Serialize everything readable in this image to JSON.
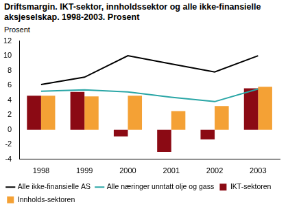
{
  "chart_data": {
    "type": "bar",
    "title": "Driftsmargin. IKT-sektor, innholdssektor og alle ikke-finansielle aksjeselskap. 1998-2003. Prosent",
    "y_label": "Prosent",
    "categories": [
      "1998",
      "1999",
      "2000",
      "2001",
      "2002",
      "2003"
    ],
    "series": [
      {
        "name": "Alle ikke-finansielle AS",
        "type": "line",
        "color": "#000000",
        "values": [
          6.1,
          7.1,
          10.0,
          8.9,
          7.8,
          10.0
        ]
      },
      {
        "name": "Alle næringer unntatt olje og gass",
        "type": "line",
        "color": "#2aa6a6",
        "values": [
          5.2,
          5.4,
          5.1,
          4.4,
          3.8,
          5.5
        ]
      },
      {
        "name": "IKT-sektoren",
        "type": "bar",
        "color": "#8b0a14",
        "values": [
          4.6,
          5.1,
          -0.9,
          -3.0,
          -1.3,
          5.6
        ]
      },
      {
        "name": "Innholds-sektoren",
        "type": "bar",
        "color": "#f4a135",
        "values": [
          4.6,
          4.5,
          4.6,
          2.5,
          3.2,
          5.8
        ]
      }
    ],
    "ylim": [
      -4,
      12
    ],
    "yticks": [
      -4,
      -2,
      0,
      2,
      4,
      6,
      8,
      10,
      12
    ],
    "grid": false,
    "legend": "bottom"
  }
}
